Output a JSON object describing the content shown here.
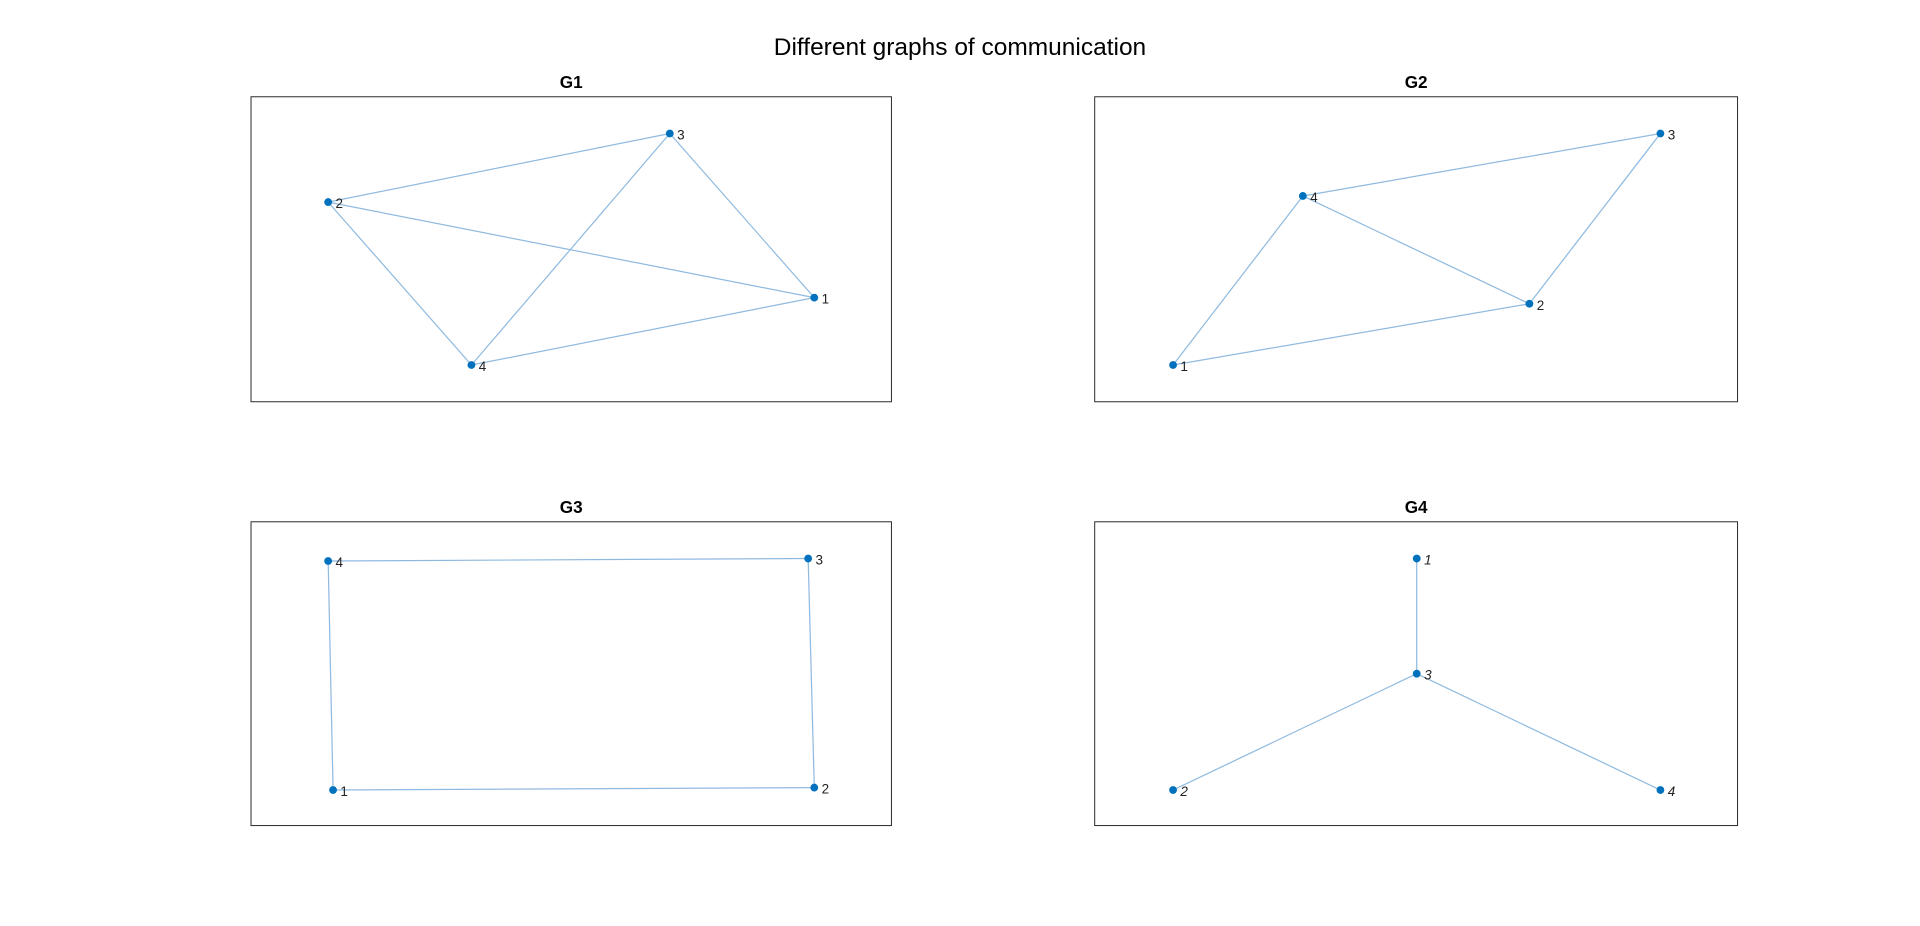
{
  "title": "Different graphs of communication",
  "panels": [
    {
      "title": "G1",
      "nodes": [
        {
          "label": "1"
        },
        {
          "label": "2"
        },
        {
          "label": "3"
        },
        {
          "label": "4"
        }
      ]
    },
    {
      "title": "G2",
      "nodes": [
        {
          "label": "1"
        },
        {
          "label": "2"
        },
        {
          "label": "3"
        },
        {
          "label": "4"
        }
      ]
    },
    {
      "title": "G3",
      "nodes": [
        {
          "label": "1"
        },
        {
          "label": "2"
        },
        {
          "label": "3"
        },
        {
          "label": "4"
        }
      ]
    },
    {
      "title": "G4",
      "nodes": [
        {
          "label": "1"
        },
        {
          "label": "2"
        },
        {
          "label": "3"
        },
        {
          "label": "4"
        }
      ]
    }
  ]
}
